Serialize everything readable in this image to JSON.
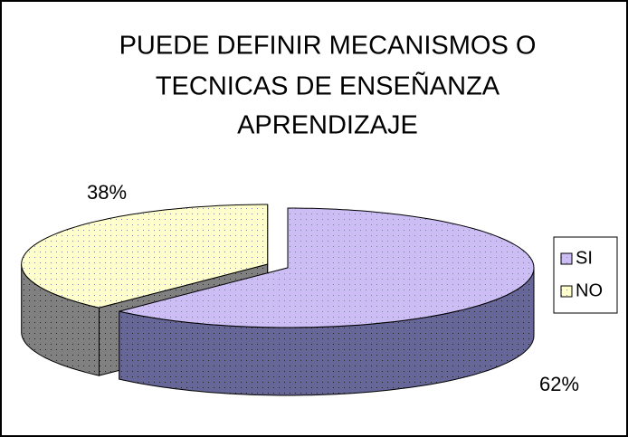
{
  "chart_data": {
    "type": "pie",
    "title": [
      "PUEDE DEFINIR MECANISMOS O",
      "TECNICAS DE ENSEÑANZA",
      "APRENDIZAJE"
    ],
    "categories": [
      "SI",
      "NO"
    ],
    "values": [
      62,
      38
    ],
    "value_labels": [
      "62%",
      "38%"
    ],
    "colors": [
      "#ccbdf5",
      "#ffffcc"
    ],
    "side_colors": [
      "#666699",
      "#808080"
    ],
    "legend": "right"
  }
}
